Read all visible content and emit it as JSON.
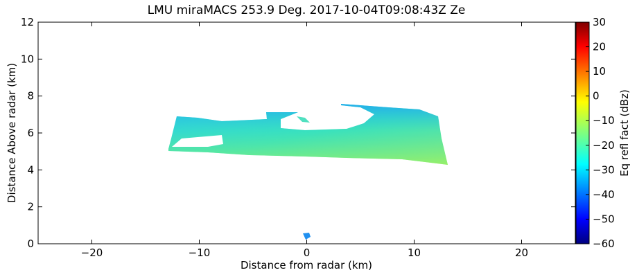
{
  "chart_data": {
    "type": "rhi",
    "title": "LMU miraMACS 253.9 Deg. 2017-10-04T09:08:43Z  Ze",
    "xlabel": "Distance from radar (km)",
    "ylabel": "Distance Above radar  (km)",
    "xlim": [
      -25,
      25
    ],
    "xticks": [
      -20,
      -10,
      0,
      10,
      20
    ],
    "ylim": [
      0,
      12
    ],
    "yticks": [
      0,
      2,
      4,
      6,
      8,
      10,
      12
    ],
    "colorbar": {
      "label": "Eq refl fact (dBz)",
      "clim": [
        -60,
        30
      ],
      "ticks": [
        -60,
        -50,
        -40,
        -30,
        -20,
        -10,
        0,
        10,
        20,
        30
      ]
    }
  }
}
